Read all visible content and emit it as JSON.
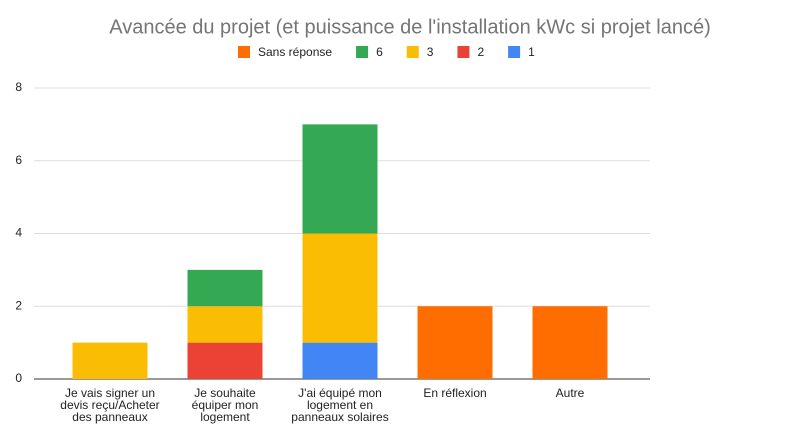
{
  "chart_data": {
    "type": "stacked_bar",
    "title": "Avancée du projet (et puissance de l'installation kWc si projet lancé)",
    "categories": [
      "Je vais signer un devis reçu/Acheter des panneaux",
      "Je souhaite équiper mon logement",
      "J'ai équipé mon logement en panneaux solaires",
      "En réflexion",
      "Autre"
    ],
    "series": [
      {
        "name": "Sans réponse",
        "color": "#ff6d01",
        "values": [
          null,
          null,
          null,
          2,
          2
        ]
      },
      {
        "name": "6",
        "color": "#34a853",
        "values": [
          null,
          1,
          3,
          null,
          null
        ]
      },
      {
        "name": "3",
        "color": "#fbbc04",
        "values": [
          1,
          1,
          3,
          null,
          null
        ]
      },
      {
        "name": "2",
        "color": "#ea4335",
        "values": [
          null,
          1,
          null,
          null,
          null
        ]
      },
      {
        "name": "1",
        "color": "#4285f4",
        "values": [
          null,
          null,
          1,
          null,
          null
        ]
      }
    ],
    "ylim": [
      0,
      8
    ],
    "yticks": [
      0,
      2,
      4,
      6,
      8
    ],
    "grid": true,
    "legend": "top"
  }
}
